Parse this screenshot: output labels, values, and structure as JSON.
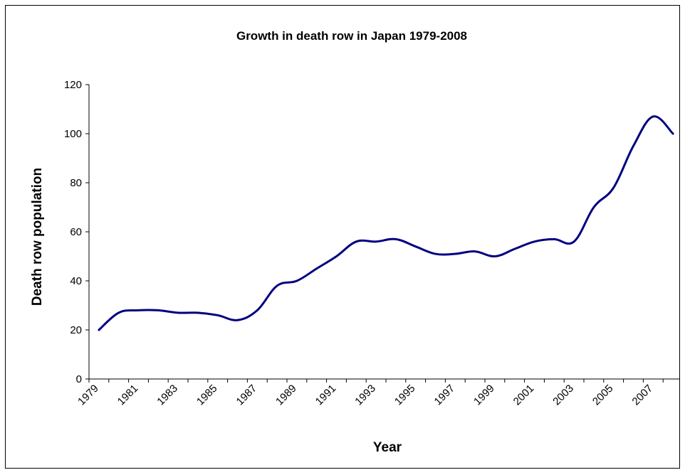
{
  "chart_data": {
    "type": "line",
    "title": "Growth in death row in Japan 1979-2008",
    "xlabel": "Year",
    "ylabel": "Death row population",
    "ylim": [
      0,
      120
    ],
    "yticks": [
      "0",
      "20",
      "40",
      "60",
      "80",
      "100",
      "120"
    ],
    "xticks": [
      "1979",
      "1981",
      "1983",
      "1985",
      "1987",
      "1989",
      "1991",
      "1993",
      "1995",
      "1997",
      "1999",
      "2001",
      "2003",
      "2005",
      "2007"
    ],
    "grid": false,
    "legend": "none",
    "line_color": "#000080",
    "series": [
      {
        "x": [
          1979,
          1980,
          1981,
          1982,
          1983,
          1984,
          1985,
          1986,
          1987,
          1988,
          1989,
          1990,
          1991,
          1992,
          1993,
          1994,
          1995,
          1996,
          1997,
          1998,
          1999,
          2000,
          2001,
          2002,
          2003,
          2004,
          2005,
          2006,
          2007,
          2008
        ],
        "values": [
          20,
          27,
          28,
          28,
          27,
          27,
          26,
          24,
          28,
          38,
          40,
          45,
          50,
          56,
          56,
          57,
          54,
          51,
          51,
          52,
          50,
          53,
          56,
          57,
          56,
          70,
          78,
          95,
          107,
          100
        ]
      }
    ]
  }
}
